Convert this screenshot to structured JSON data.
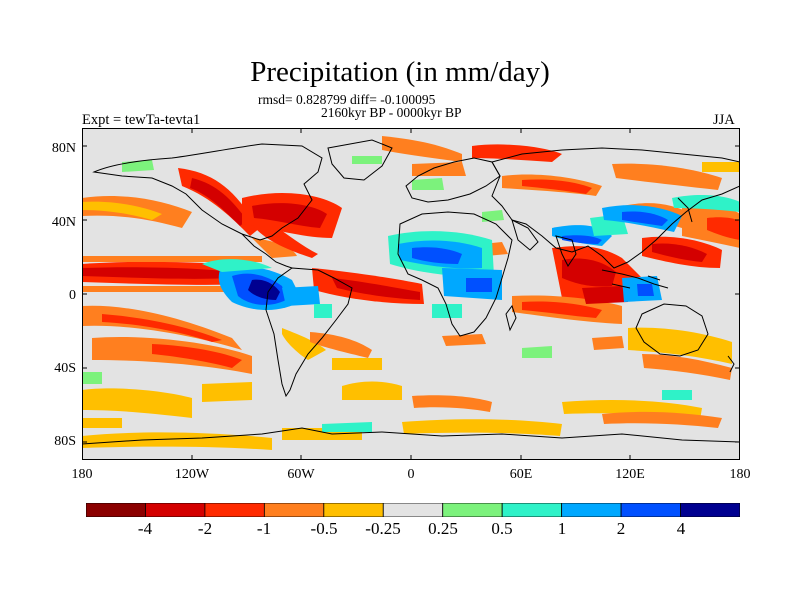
{
  "header": {
    "title": "Precipitation (in mm/day)",
    "stats": "rmsd= 0.828799 diff= -0.100095",
    "period": "2160kyr BP - 0000kyr BP",
    "experiment": "Expt = tewTa-tevta1",
    "season": "JJA"
  },
  "axes": {
    "y_labels": [
      "80N",
      "40N",
      "0",
      "40S",
      "80S"
    ],
    "x_labels": [
      "180",
      "120W",
      "60W",
      "0",
      "60E",
      "120E",
      "180"
    ]
  },
  "colorbar": {
    "labels": [
      "-4",
      "-2",
      "-1",
      "-0.5",
      "-0.25",
      "0.25",
      "0.5",
      "1",
      "2",
      "4"
    ],
    "colors": [
      "#8b0000",
      "#d40000",
      "#ff2a00",
      "#ff7f1f",
      "#ffbf00",
      "#e3e3e3",
      "#7cf27c",
      "#2ff2c8",
      "#00a8ff",
      "#0050ff",
      "#000090"
    ]
  },
  "map": {
    "background_color": "#e3e3e3",
    "projection": "cylindrical-equidistant",
    "lon_range": [
      -180,
      180
    ],
    "lat_range": [
      -90,
      90
    ]
  }
}
